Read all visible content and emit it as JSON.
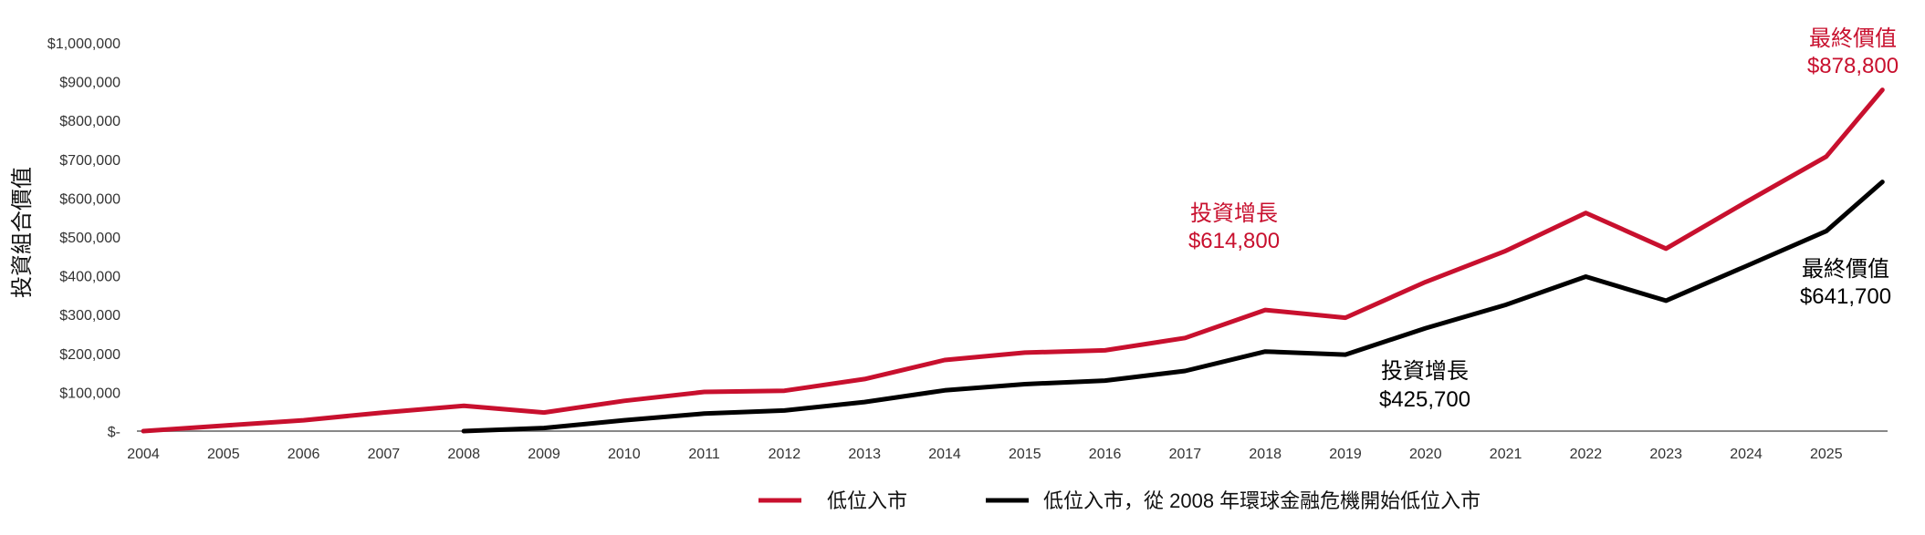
{
  "chart_data": {
    "type": "line",
    "title": "",
    "xlabel": "",
    "ylabel": "投資組合價值",
    "ylim": [
      0,
      1000000
    ],
    "yticks": [
      0,
      100000,
      200000,
      300000,
      400000,
      500000,
      600000,
      700000,
      800000,
      900000,
      1000000
    ],
    "ytick_labels": [
      "$-",
      "$100,000",
      "$200,000",
      "$300,000",
      "$400,000",
      "$500,000",
      "$600,000",
      "$700,000",
      "$800,000",
      "$900,000",
      "$1,000,000"
    ],
    "xtick_labels": [
      "2004",
      "2005",
      "2006",
      "2007",
      "2008",
      "2009",
      "2010",
      "2011",
      "2012",
      "2013",
      "2014",
      "2015",
      "2016",
      "2017",
      "2018",
      "2019",
      "2020",
      "2021",
      "2022",
      "2023",
      "2024",
      "2025"
    ],
    "grid": false,
    "legend_position": "bottom",
    "series": [
      {
        "name": "低位入市",
        "color": "#c8102e",
        "x": [
          2004,
          2005,
          2006,
          2007,
          2008,
          2009,
          2010,
          2011,
          2012,
          2013,
          2014,
          2015,
          2016,
          2017,
          2018,
          2019,
          2020,
          2021,
          2022,
          2023,
          2024,
          2025,
          2025.7
        ],
        "values": [
          0,
          14000,
          28000,
          48000,
          65000,
          48000,
          78000,
          101000,
          104000,
          134000,
          183000,
          202000,
          208000,
          240000,
          312000,
          292000,
          384000,
          464000,
          562000,
          470000,
          590000,
          707000,
          878800
        ]
      },
      {
        "name": "低位入市，從 2008 年環球金融危機開始低位入市",
        "color": "#000000",
        "x": [
          2008,
          2009,
          2010,
          2011,
          2012,
          2013,
          2014,
          2015,
          2016,
          2017,
          2018,
          2019,
          2020,
          2021,
          2022,
          2023,
          2024,
          2025,
          2025.7
        ],
        "values": [
          0,
          8000,
          28000,
          45000,
          53000,
          75000,
          105000,
          121000,
          130000,
          155000,
          205000,
          197000,
          265000,
          325000,
          398000,
          336000,
          425000,
          515000,
          641700
        ]
      }
    ],
    "annotations": [
      {
        "series": 0,
        "label": "投資增長",
        "value": "$614,800"
      },
      {
        "series": 0,
        "label": "最終價值",
        "value": "$878,800"
      },
      {
        "series": 1,
        "label": "投資增長",
        "value": "$425,700"
      },
      {
        "series": 1,
        "label": "最終價值",
        "value": "$641,700"
      }
    ]
  }
}
